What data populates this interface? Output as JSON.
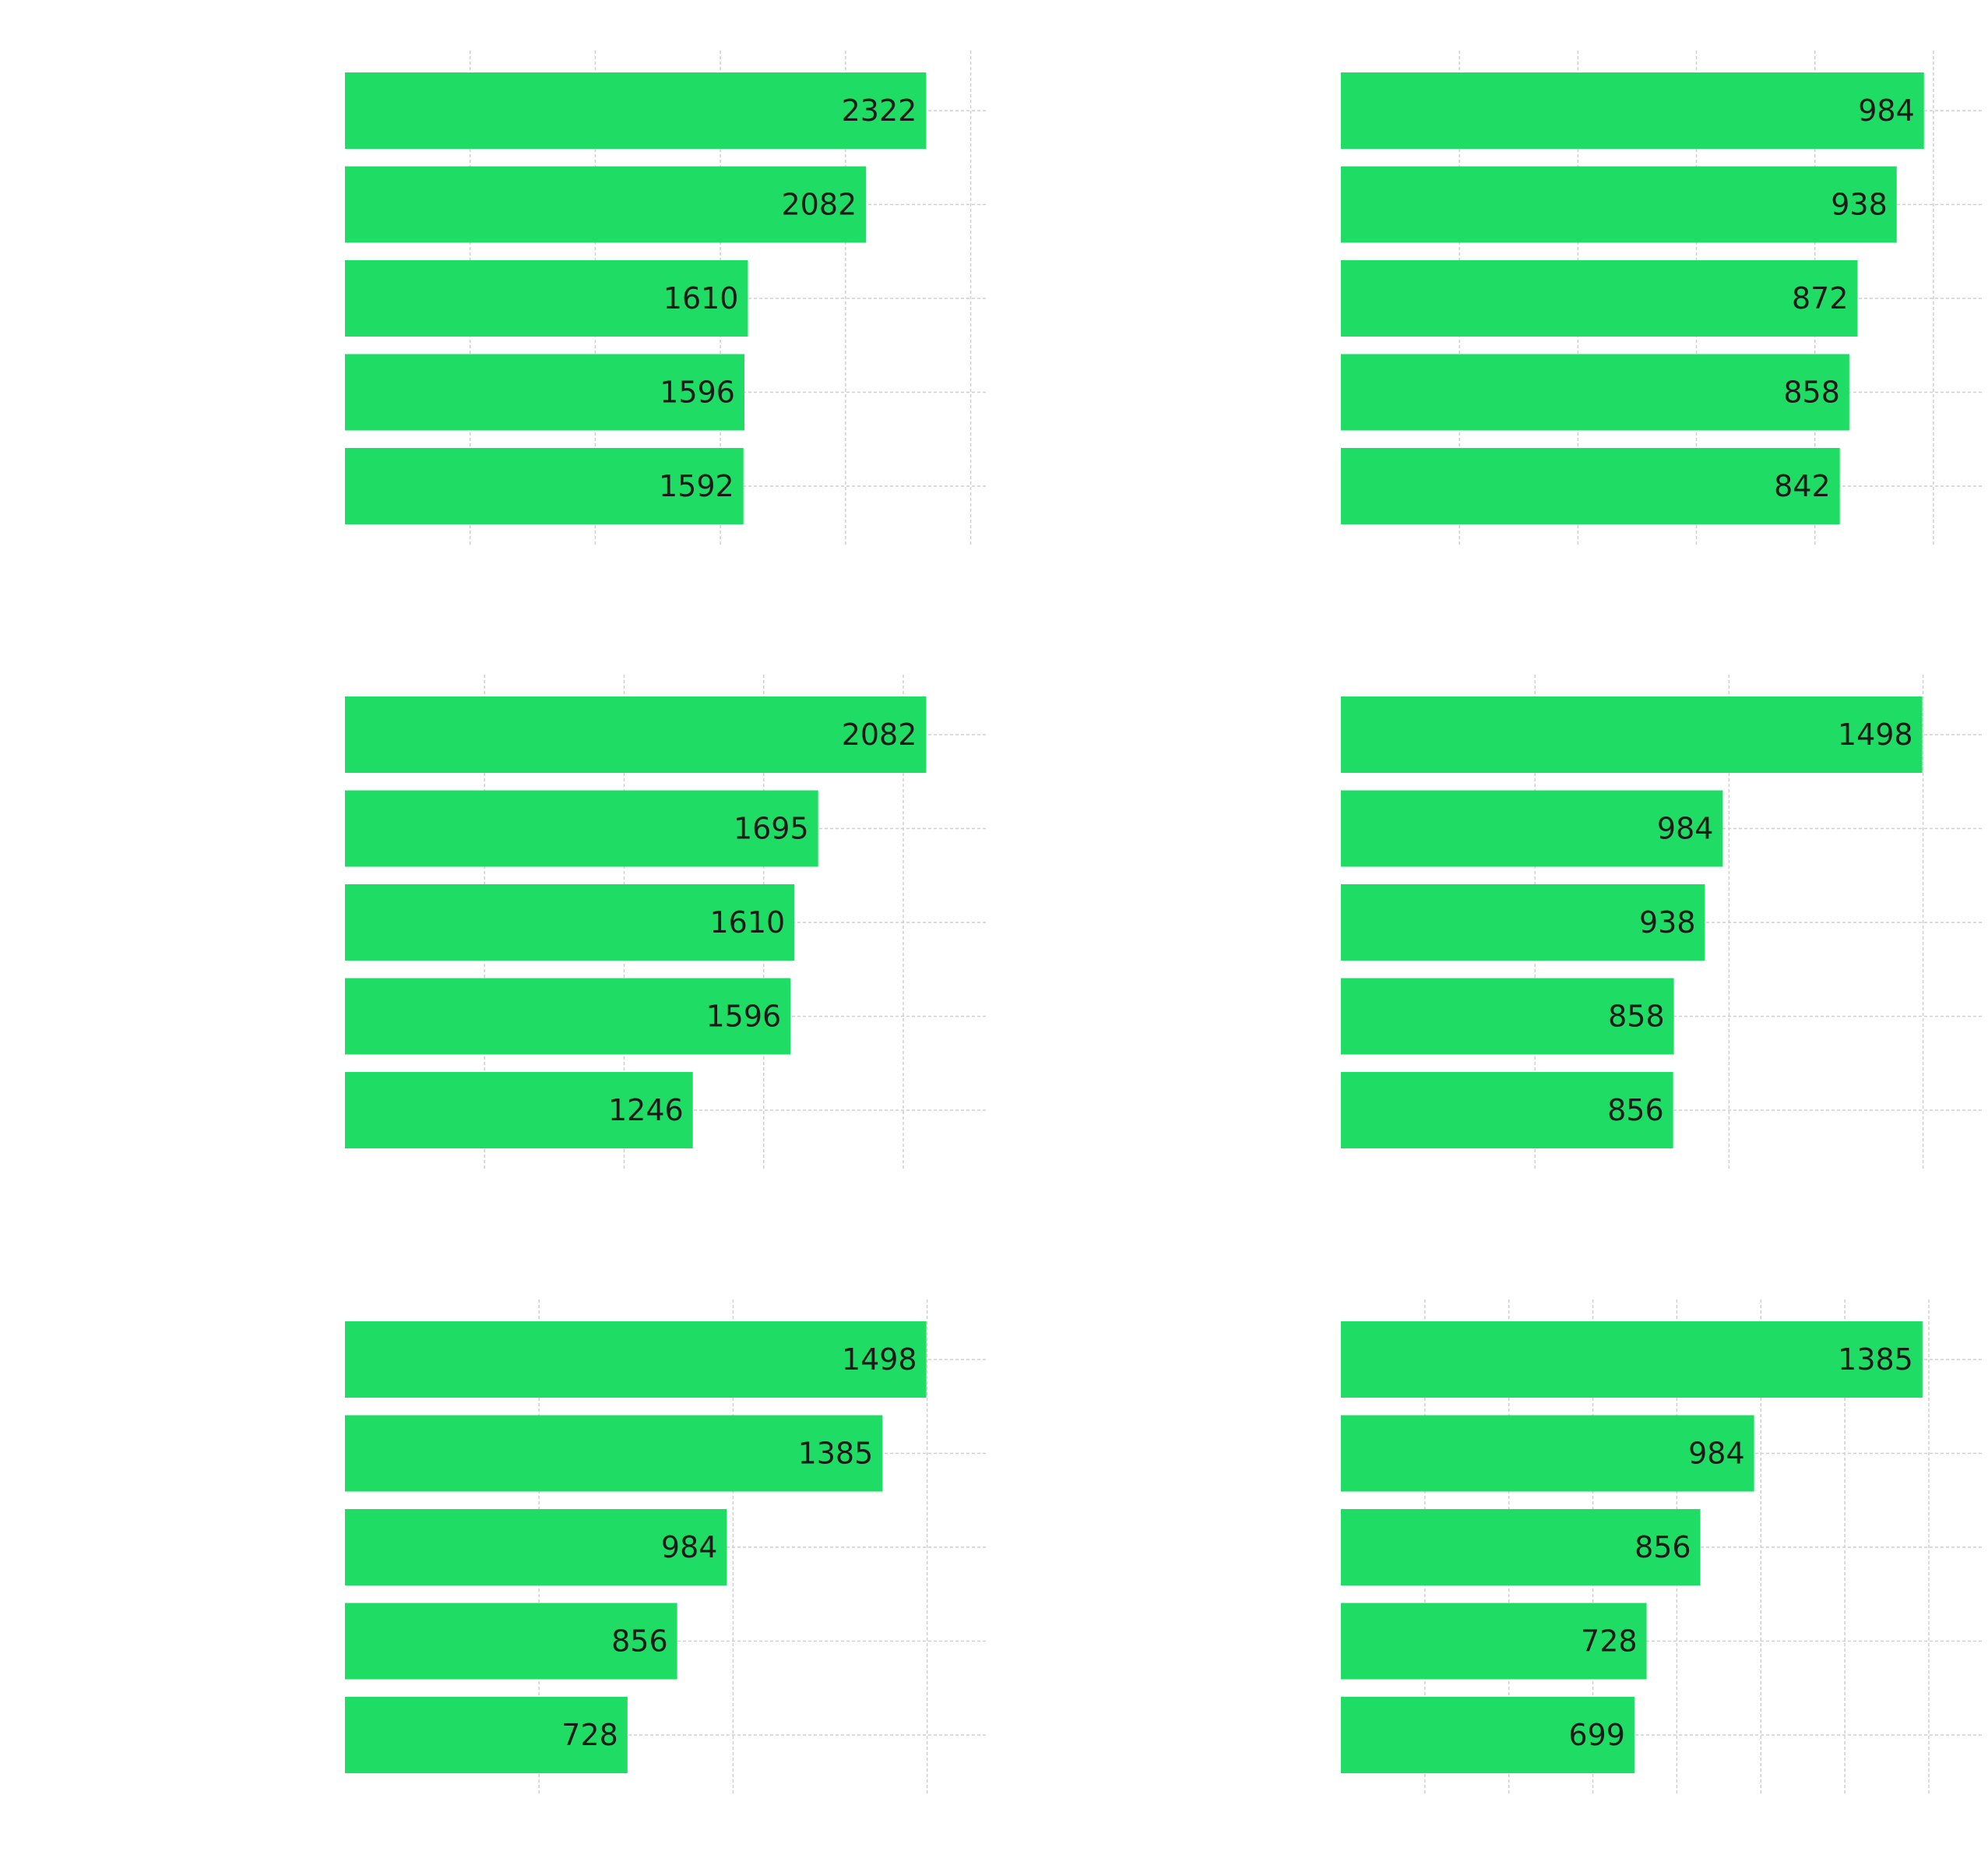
{
  "bar_color": "#1fdc64",
  "grid_color": "#cfcfcf",
  "chart_data": [
    {
      "type": "bar",
      "orientation": "horizontal",
      "values": [
        2322,
        2082,
        1610,
        1596,
        1592
      ],
      "xlim": [
        0,
        2436
      ],
      "grid": true
    },
    {
      "type": "bar",
      "orientation": "horizontal",
      "values": [
        984,
        938,
        872,
        858,
        842
      ],
      "xlim": [
        0,
        1029
      ],
      "grid": true
    },
    {
      "type": "bar",
      "orientation": "horizontal",
      "values": [
        2082,
        1695,
        1610,
        1596,
        1246
      ],
      "xlim": [
        0,
        2184
      ],
      "grid": true
    },
    {
      "type": "bar",
      "orientation": "horizontal",
      "values": [
        1498,
        984,
        938,
        858,
        856
      ],
      "xlim": [
        0,
        1571
      ],
      "grid": true
    },
    {
      "type": "bar",
      "orientation": "horizontal",
      "values": [
        1498,
        1385,
        984,
        856,
        728
      ],
      "xlim": [
        0,
        1571
      ],
      "grid": true
    },
    {
      "type": "bar",
      "orientation": "horizontal",
      "values": [
        1385,
        984,
        856,
        728,
        699
      ],
      "xlim": [
        0,
        1452
      ],
      "grid": true
    }
  ]
}
